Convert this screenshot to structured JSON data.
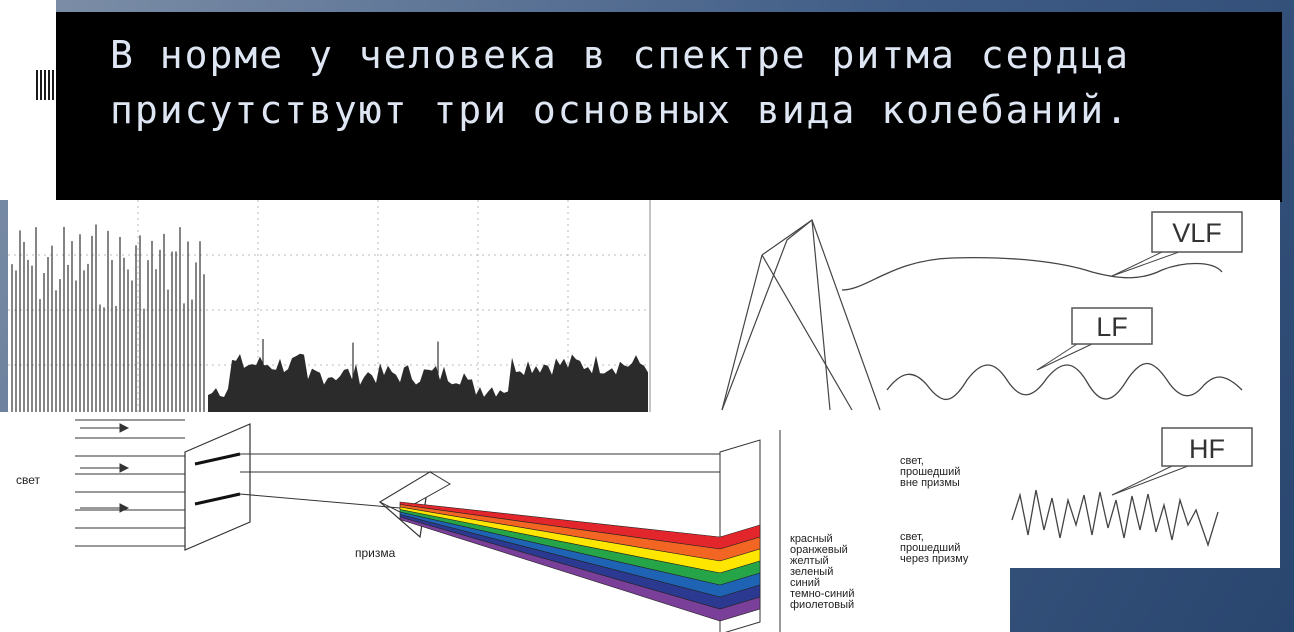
{
  "slide": {
    "title": "В норме у человека в спектре ритма сердца присутствуют три основных вида колебаний."
  },
  "wave_panel": {
    "labels": {
      "vlf": "VLF",
      "lf": "LF",
      "hf": "HF"
    }
  },
  "prism_panel": {
    "light_label": "свет",
    "prism_label": "призма",
    "outside_prism_label": [
      "свет,",
      "прошедший",
      "вне призмы"
    ],
    "through_prism_label": [
      "свет,",
      "прошедший",
      "через призму"
    ],
    "spectrum_colors": [
      {
        "name": "красный",
        "color": "#e3262b"
      },
      {
        "name": "оранжевый",
        "color": "#f26522"
      },
      {
        "name": "желтый",
        "color": "#ffe600"
      },
      {
        "name": "зеленый",
        "color": "#26a548"
      },
      {
        "name": "синий",
        "color": "#1e63b4"
      },
      {
        "name": "темно-синий",
        "color": "#2b3990"
      },
      {
        "name": "фиолетовый",
        "color": "#7a3f98"
      }
    ]
  },
  "colors": {
    "title_text": "#dfe6f3",
    "title_band": "#000000",
    "slide_background": "#3f5c86"
  }
}
